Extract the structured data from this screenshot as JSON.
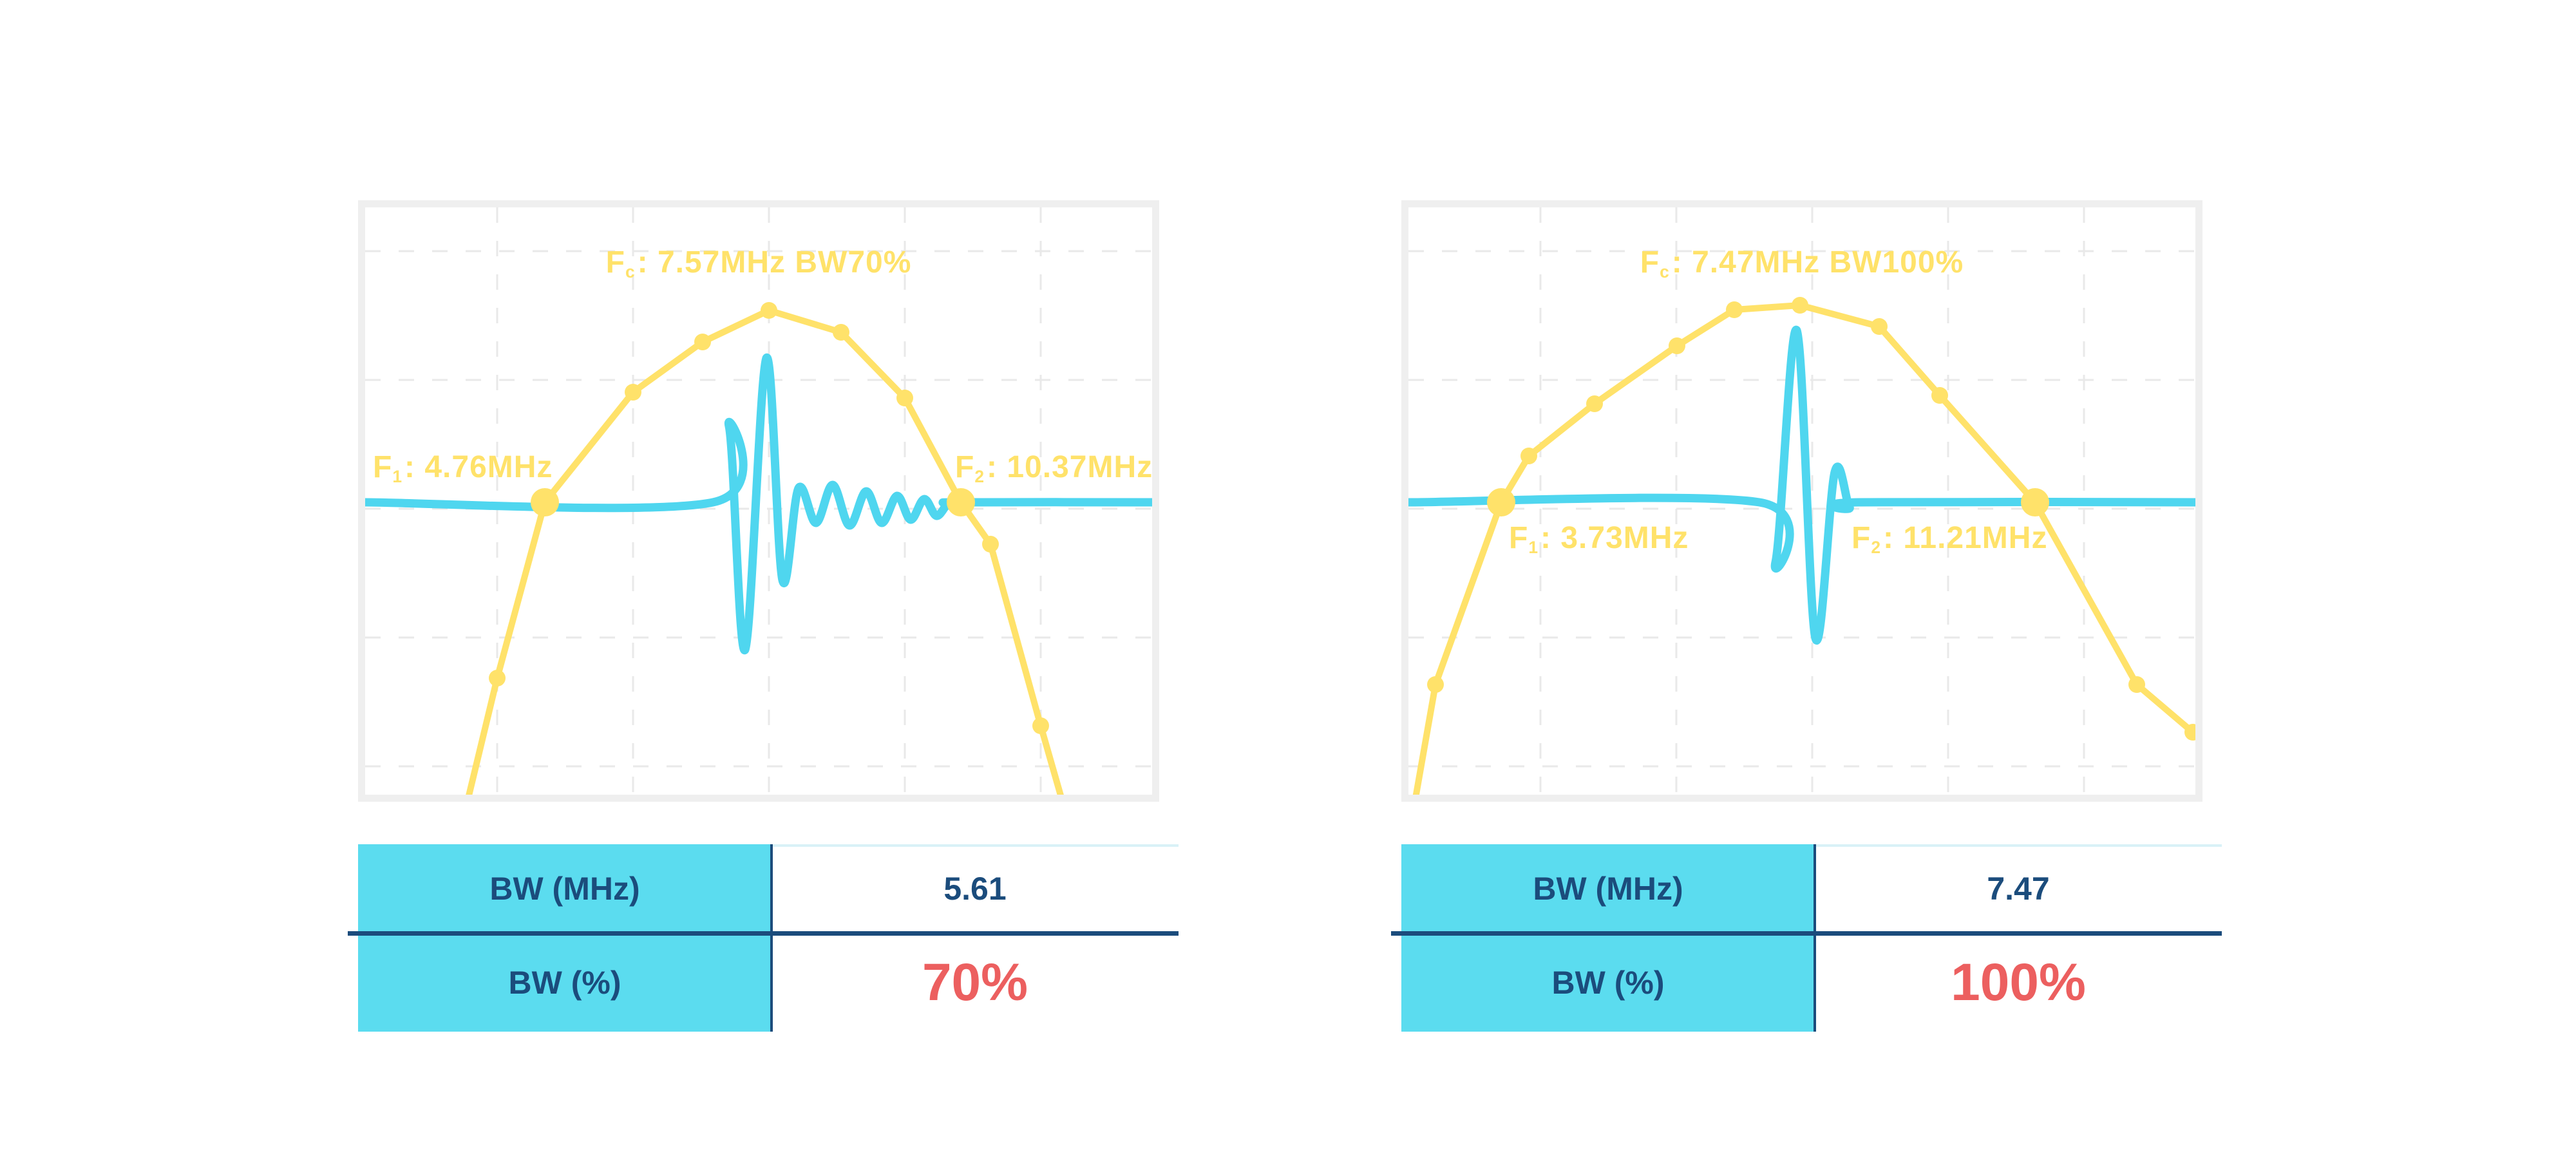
{
  "colors": {
    "spectrum_yellow": "#FFE26A",
    "pulse_cyan": "#4FD6EF",
    "table_header_cyan": "#5BDCEF",
    "navy_text": "#1B4C7C",
    "red_value": "#EC5F5F",
    "grid_gray": "#E9E9E9",
    "chart_frame_gray": "#EFEFEF",
    "value_topline": "#D9F1F7"
  },
  "panels": [
    {
      "title": {
        "f": "F",
        "sub": "c",
        "rest": ": 7.57MHz BW70%"
      },
      "f1_label": {
        "f": "F",
        "sub": "1",
        "rest": ": 4.76MHz"
      },
      "f2_label": {
        "f": "F",
        "sub": "2",
        "rest": ": 10.37MHz"
      },
      "table": {
        "rows": [
          {
            "label": "BW (MHz)",
            "value": "5.61"
          },
          {
            "label": "BW (%)",
            "value": "70%"
          }
        ]
      }
    },
    {
      "title": {
        "f": "F",
        "sub": "c",
        "rest": ": 7.47MHz BW100%"
      },
      "f1_label": {
        "f": "F",
        "sub": "1",
        "rest": ": 3.73MHz"
      },
      "f2_label": {
        "f": "F",
        "sub": "2",
        "rest": ": 11.21MHz"
      },
      "table": {
        "rows": [
          {
            "label": "BW (MHz)",
            "value": "7.47"
          },
          {
            "label": "BW (%)",
            "value": "100%"
          }
        ]
      }
    }
  ],
  "chart_data": [
    {
      "type": "line",
      "title": "Fc: 7.57MHz BW70%",
      "x_unit": "MHz",
      "f1_mhz": 4.76,
      "fc_mhz": 7.57,
      "f2_mhz": 10.37,
      "bw_mhz": 5.61,
      "bw_percent": 70,
      "x_range_mhz_approx": [
        2.3,
        13.1
      ],
      "baseline_y": 458,
      "grid": {
        "vx": [
          205,
          416,
          627,
          838,
          1049
        ],
        "hy": [
          68,
          268,
          468,
          668,
          868
        ]
      },
      "series": [
        {
          "name": "spectrum",
          "color": "#FFE26A",
          "width": 10,
          "smooth": false,
          "points": [
            [
              151,
              955,
              0
            ],
            [
              205,
              731,
              1
            ],
            [
              279,
              458,
              2
            ],
            [
              416,
              287,
              1
            ],
            [
              524,
              209,
              1
            ],
            [
              627,
              160,
              1
            ],
            [
              739,
              194,
              1
            ],
            [
              838,
              296,
              1
            ],
            [
              925,
              458,
              2
            ],
            [
              971,
              523,
              1
            ],
            [
              1049,
              805,
              1
            ],
            [
              1092,
              955,
              0
            ]
          ]
        },
        {
          "name": "pulse",
          "color": "#4FD6EF",
          "width": 13,
          "smooth": true,
          "points": [
            [
              0,
              458
            ],
            [
              540,
              458
            ],
            [
              565,
              340
            ],
            [
              590,
              687
            ],
            [
              623,
              234
            ],
            [
              648,
              579
            ],
            [
              673,
              436
            ],
            [
              700,
              490
            ],
            [
              726,
              431
            ],
            [
              752,
              494
            ],
            [
              778,
              441
            ],
            [
              802,
              490
            ],
            [
              826,
              448
            ],
            [
              847,
              485
            ],
            [
              868,
              453
            ],
            [
              887,
              479
            ],
            [
              905,
              461
            ],
            [
              925,
              458
            ],
            [
              1222,
              458
            ]
          ]
        }
      ]
    },
    {
      "type": "line",
      "title": "Fc: 7.47MHz BW100%",
      "x_unit": "MHz",
      "f1_mhz": 3.73,
      "fc_mhz": 7.47,
      "f2_mhz": 11.21,
      "bw_mhz": 7.47,
      "bw_percent": 100,
      "x_range_mhz_approx": [
        2.4,
        13.5
      ],
      "baseline_y": 458,
      "grid": {
        "vx": [
          205,
          416,
          627,
          838,
          1049
        ],
        "hy": [
          68,
          268,
          468,
          668,
          868
        ]
      },
      "series": [
        {
          "name": "spectrum",
          "color": "#FFE26A",
          "width": 10,
          "smooth": false,
          "points": [
            [
              0,
              980,
              0
            ],
            [
              42,
              741,
              1
            ],
            [
              144,
              458,
              2
            ],
            [
              187,
              386,
              1
            ],
            [
              289,
              305,
              1
            ],
            [
              417,
              215,
              1
            ],
            [
              506,
              159,
              1
            ],
            [
              608,
              152,
              1
            ],
            [
              731,
              185,
              1
            ],
            [
              825,
              292,
              1
            ],
            [
              973,
              458,
              2
            ],
            [
              1131,
              741,
              1
            ],
            [
              1218,
              815,
              1
            ]
          ]
        },
        {
          "name": "pulse",
          "color": "#4FD6EF",
          "width": 13,
          "smooth": true,
          "points": [
            [
              0,
              458
            ],
            [
              545,
              458
            ],
            [
              570,
              551
            ],
            [
              603,
              191
            ],
            [
              632,
              669
            ],
            [
              662,
              411
            ],
            [
              685,
              466
            ],
            [
              700,
              458
            ],
            [
              1222,
              458
            ]
          ]
        }
      ]
    }
  ]
}
